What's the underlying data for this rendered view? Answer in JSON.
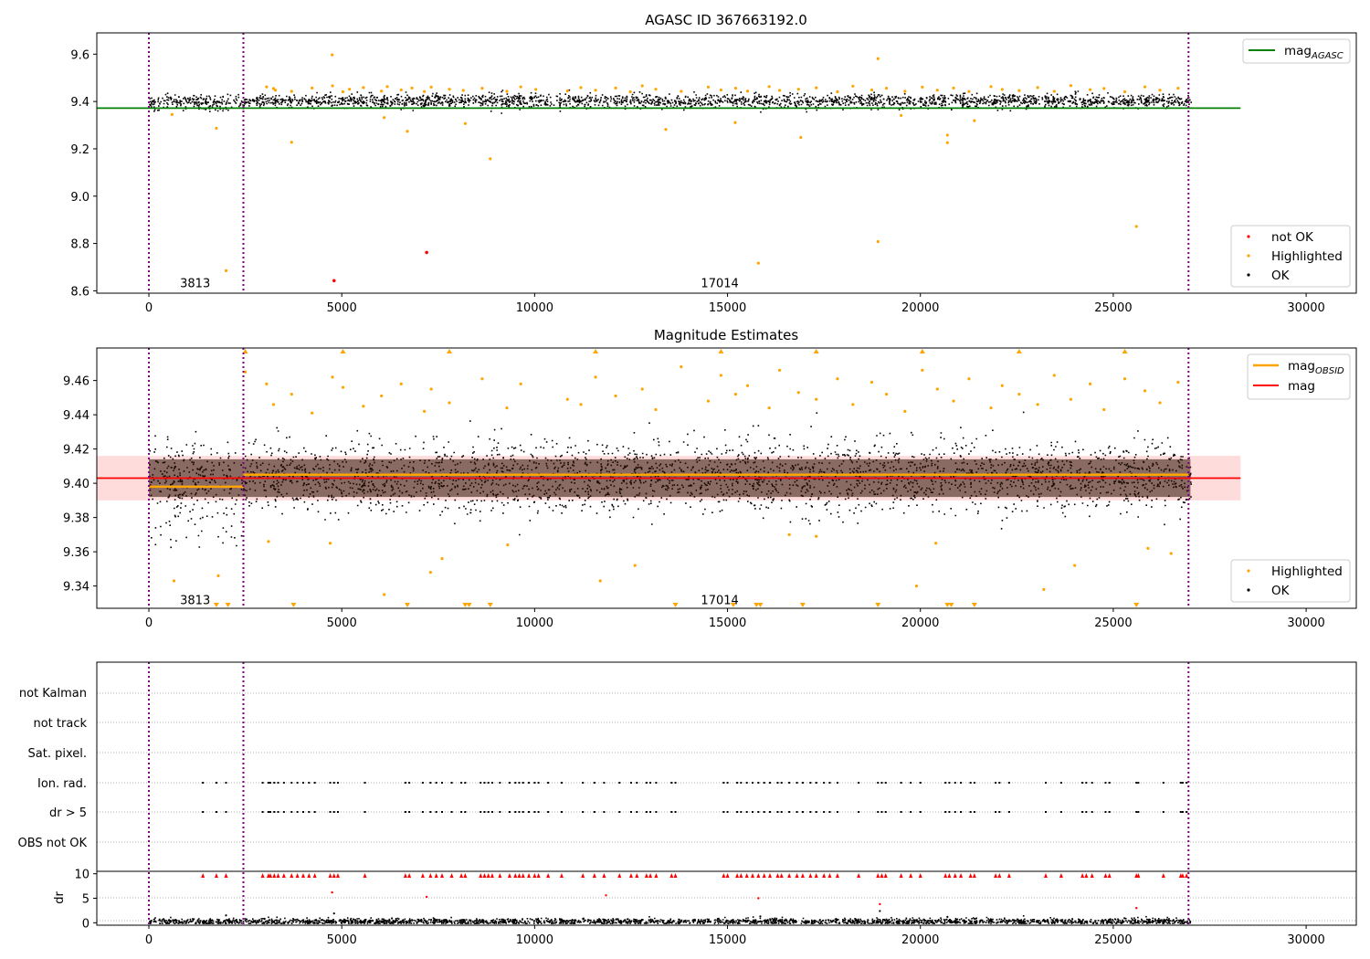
{
  "colors": {
    "ok": "#000000",
    "highlighted": "#ffa500",
    "not_ok": "#ff0000",
    "agasc_line": "#008000",
    "obsid_line": "#ffa500",
    "mag_line": "#ff0000",
    "band_fill": "#ffc0c0",
    "obs_boundary": "#800080",
    "grid": "#b0b0b0"
  },
  "obs_boundaries": [
    0,
    2450,
    26950
  ],
  "obs_labels": [
    {
      "text": "3813",
      "x": 1200
    },
    {
      "text": "17014",
      "x": 14800
    }
  ],
  "chart_data": [
    {
      "type": "scatter",
      "title": "AGASC ID 367663192.0",
      "xlim": [
        -1350,
        31300
      ],
      "ylim": [
        8.59,
        9.69
      ],
      "xticks": [
        0,
        5000,
        10000,
        15000,
        20000,
        25000,
        30000
      ],
      "xtick_labels": [
        "0",
        "5000",
        "10000",
        "15000",
        "20000",
        "25000",
        "30000"
      ],
      "yticks": [
        8.6,
        8.8,
        9.0,
        9.2,
        9.4,
        9.6
      ],
      "ytick_labels": [
        "8.6",
        "8.8",
        "9.0",
        "9.2",
        "9.4",
        "9.6"
      ],
      "obs_label_y": 8.635,
      "lines": [
        {
          "name": "mag",
          "subscript": "AGASC",
          "x": [
            -1350,
            28300
          ],
          "y": [
            9.372,
            9.372
          ]
        }
      ],
      "legend_top": {
        "position": "top-right",
        "entries": [
          {
            "name": "mag",
            "subscript": "AGASC",
            "kind": "line"
          }
        ]
      },
      "legend_bottom": {
        "position": "bottom-right",
        "entries": [
          {
            "name": "not OK",
            "kind": "dot"
          },
          {
            "name": "Highlighted",
            "kind": "dot"
          },
          {
            "name": "OK",
            "kind": "dot"
          }
        ]
      },
      "ok_band": {
        "x": [
          0,
          27000
        ],
        "center": 9.405,
        "spread": 0.025,
        "lower_dip": 9.36,
        "segment_split": 2450,
        "count": 2600
      },
      "highlighted_points": {
        "x": [
          3050,
          3230,
          3280,
          3700,
          4230,
          4760,
          5030,
          5200,
          5560,
          6030,
          6180,
          6540,
          6820,
          7140,
          7320,
          7790,
          8150,
          8640,
          9280,
          9640,
          10030,
          10850,
          11200,
          11580,
          12100,
          12480,
          12790,
          13140,
          13800,
          14500,
          14830,
          15210,
          15520,
          16080,
          16350,
          16840,
          17300,
          17850,
          18250,
          18740,
          19120,
          19600,
          20050,
          20440,
          20860,
          21260,
          21830,
          22120,
          22560,
          23040,
          23470,
          23900,
          24400,
          24760,
          25300,
          25820,
          26210,
          26680
        ],
        "y": [
          9.462,
          9.455,
          9.448,
          9.443,
          9.457,
          9.466,
          9.441,
          9.452,
          9.459,
          9.444,
          9.463,
          9.449,
          9.457,
          9.442,
          9.461,
          9.452,
          9.447,
          9.456,
          9.443,
          9.462,
          9.451,
          9.445,
          9.459,
          9.448,
          9.457,
          9.441,
          9.466,
          9.452,
          9.443,
          9.461,
          9.449,
          9.456,
          9.444,
          9.463,
          9.447,
          9.452,
          9.458,
          9.441,
          9.465,
          9.449,
          9.456,
          9.443,
          9.461,
          9.448,
          9.457,
          9.442,
          9.463,
          9.451,
          9.446,
          9.459,
          9.443,
          9.467,
          9.45,
          9.455,
          9.441,
          9.462,
          9.448,
          9.456
        ]
      },
      "highlighted_outliers": {
        "x": [
          600,
          1750,
          2000,
          3700,
          4750,
          6100,
          6700,
          8200,
          8850,
          13400,
          15200,
          15800,
          16900,
          18900,
          18900,
          19500,
          20700,
          20700,
          21400,
          25600
        ],
        "y": [
          9.345,
          9.287,
          8.685,
          9.228,
          9.597,
          9.332,
          9.274,
          9.307,
          9.158,
          9.282,
          9.311,
          8.717,
          9.248,
          9.581,
          8.808,
          9.341,
          9.258,
          9.226,
          9.319,
          8.872
        ]
      },
      "not_ok_points": {
        "x": [
          7200,
          4800
        ],
        "y": [
          8.762,
          8.643
        ]
      }
    },
    {
      "type": "scatter",
      "title": "Magnitude Estimates",
      "xlim": [
        -1350,
        31300
      ],
      "ylim": [
        9.327,
        9.479
      ],
      "xticks": [
        0,
        5000,
        10000,
        15000,
        20000,
        25000,
        30000
      ],
      "xtick_labels": [
        "0",
        "5000",
        "10000",
        "15000",
        "20000",
        "25000",
        "30000"
      ],
      "yticks": [
        9.34,
        9.36,
        9.38,
        9.4,
        9.42,
        9.44,
        9.46
      ],
      "ytick_labels": [
        "9.34",
        "9.36",
        "9.38",
        "9.40",
        "9.42",
        "9.44",
        "9.46"
      ],
      "obs_label_y": 9.332,
      "band": {
        "x": [
          -1350,
          28300
        ],
        "y": [
          9.39,
          9.416
        ]
      },
      "lines": [
        {
          "name": "mag",
          "subscript": "OBSID",
          "x": [
            0,
            2450
          ],
          "y": [
            9.398,
            9.398
          ]
        },
        {
          "name": "mag",
          "subscript": "OBSID",
          "x": [
            2450,
            26950
          ],
          "y": [
            9.405,
            9.405
          ]
        },
        {
          "name": "mag",
          "x": [
            -1350,
            28300
          ],
          "y": [
            9.403,
            9.403
          ]
        }
      ],
      "legend_top": {
        "position": "top-right",
        "entries": [
          {
            "name": "mag",
            "subscript": "OBSID",
            "kind": "line"
          },
          {
            "name": "mag",
            "kind": "line"
          }
        ]
      },
      "legend_bottom": {
        "position": "bottom-right",
        "entries": [
          {
            "name": "Highlighted",
            "kind": "dot"
          },
          {
            "name": "OK",
            "kind": "dot"
          }
        ]
      },
      "ok_band": {
        "x": [
          0,
          27000
        ],
        "center": 9.404,
        "spread": 0.018,
        "lower_dip": 9.362,
        "segment_split": 2450,
        "count": 3200
      },
      "highlighted_points": {
        "x": [
          2500,
          3050,
          3230,
          3700,
          4230,
          4760,
          5030,
          5560,
          6030,
          6540,
          7140,
          7320,
          7790,
          8640,
          9280,
          9640,
          10850,
          11200,
          11580,
          12100,
          12790,
          13140,
          13800,
          14500,
          14830,
          15210,
          15520,
          16080,
          16350,
          16840,
          17300,
          17850,
          18250,
          18740,
          19120,
          19600,
          20050,
          20440,
          20860,
          21260,
          21830,
          22120,
          22560,
          23040,
          23470,
          23900,
          24400,
          24760,
          25300,
          25820,
          26210,
          26680
        ],
        "y": [
          9.465,
          9.458,
          9.446,
          9.452,
          9.441,
          9.462,
          9.456,
          9.445,
          9.451,
          9.458,
          9.442,
          9.455,
          9.447,
          9.461,
          9.444,
          9.458,
          9.449,
          9.446,
          9.462,
          9.451,
          9.455,
          9.443,
          9.468,
          9.448,
          9.463,
          9.452,
          9.457,
          9.444,
          9.466,
          9.453,
          9.449,
          9.461,
          9.446,
          9.459,
          9.452,
          9.442,
          9.466,
          9.455,
          9.448,
          9.461,
          9.444,
          9.457,
          9.452,
          9.446,
          9.463,
          9.449,
          9.458,
          9.443,
          9.461,
          9.454,
          9.447,
          9.459
        ]
      },
      "highlighted_outliers": {
        "x": [
          650,
          1800,
          3100,
          4700,
          6100,
          7300,
          7600,
          9300,
          11700,
          12600,
          16600,
          17300,
          19900,
          20400,
          23200,
          24000,
          25900,
          26500
        ],
        "y": [
          9.343,
          9.346,
          9.366,
          9.365,
          9.335,
          9.348,
          9.356,
          9.364,
          9.343,
          9.352,
          9.37,
          9.369,
          9.34,
          9.365,
          9.338,
          9.352,
          9.362,
          9.359
        ]
      },
      "clipped_markers_x": [
        1750,
        2050,
        3750,
        6700,
        8200,
        8300,
        8850,
        13650,
        15150,
        15750,
        15850,
        16950,
        18900,
        20700,
        20800,
        21400,
        25600
      ]
    },
    {
      "type": "table",
      "ylabels": [
        "not Kalman",
        "not track",
        "Sat. pixel.",
        "Ion. rad.",
        "dr > 5",
        "OBS not OK"
      ],
      "flag_rows_with_points": [
        "Ion. rad.",
        "dr > 5"
      ],
      "flag_x": [
        1400,
        1750,
        2000,
        2950,
        3100,
        3150,
        3250,
        3350,
        3500,
        3700,
        3850,
        4000,
        4150,
        4300,
        4700,
        4800,
        4900,
        5600,
        6650,
        6750,
        7100,
        7300,
        7450,
        7600,
        7850,
        8100,
        8200,
        8600,
        8700,
        8800,
        8900,
        9100,
        9350,
        9500,
        9600,
        9700,
        9850,
        10000,
        10100,
        10350,
        10700,
        11250,
        11550,
        11800,
        12200,
        12500,
        12650,
        12900,
        13000,
        13150,
        13550,
        13650,
        14900,
        15000,
        15250,
        15350,
        15500,
        15650,
        15800,
        15950,
        16100,
        16300,
        16400,
        16600,
        16800,
        16950,
        17150,
        17300,
        17500,
        17650,
        17850,
        18400,
        18900,
        19000,
        19100,
        19500,
        19750,
        20000,
        20650,
        20750,
        20900,
        21050,
        21300,
        21400,
        21950,
        22050,
        22300,
        23250,
        23650,
        24200,
        24300,
        24450,
        24800,
        24900,
        25600,
        25650,
        26300,
        26750,
        26800,
        26900
      ]
    },
    {
      "type": "scatter",
      "ylabel": "dr",
      "xlim": [
        -1350,
        31300
      ],
      "ylim": [
        -0.5,
        10.5
      ],
      "xticks": [
        0,
        5000,
        10000,
        15000,
        20000,
        25000,
        30000
      ],
      "xtick_labels": [
        "0",
        "5000",
        "10000",
        "15000",
        "20000",
        "25000",
        "30000"
      ],
      "yticks": [
        0,
        5,
        10
      ],
      "ytick_labels": [
        "0",
        "5",
        "10"
      ],
      "clipped_at": 10,
      "base_band": {
        "x": [
          0,
          27000
        ],
        "center": 0.4,
        "spread": 0.3
      },
      "not_ok_points": {
        "x": [
          4750,
          7200,
          11850,
          15800,
          18950,
          25600
        ],
        "y": [
          6.2,
          5.3,
          5.6,
          5.0,
          3.8,
          3.0
        ]
      },
      "ok_points": {
        "x": [
          2000,
          3000,
          4800,
          6300,
          15850,
          18950,
          20700
        ],
        "y": [
          1.5,
          0.8,
          1.9,
          0.9,
          1.3,
          2.4,
          1.2
        ]
      }
    }
  ]
}
